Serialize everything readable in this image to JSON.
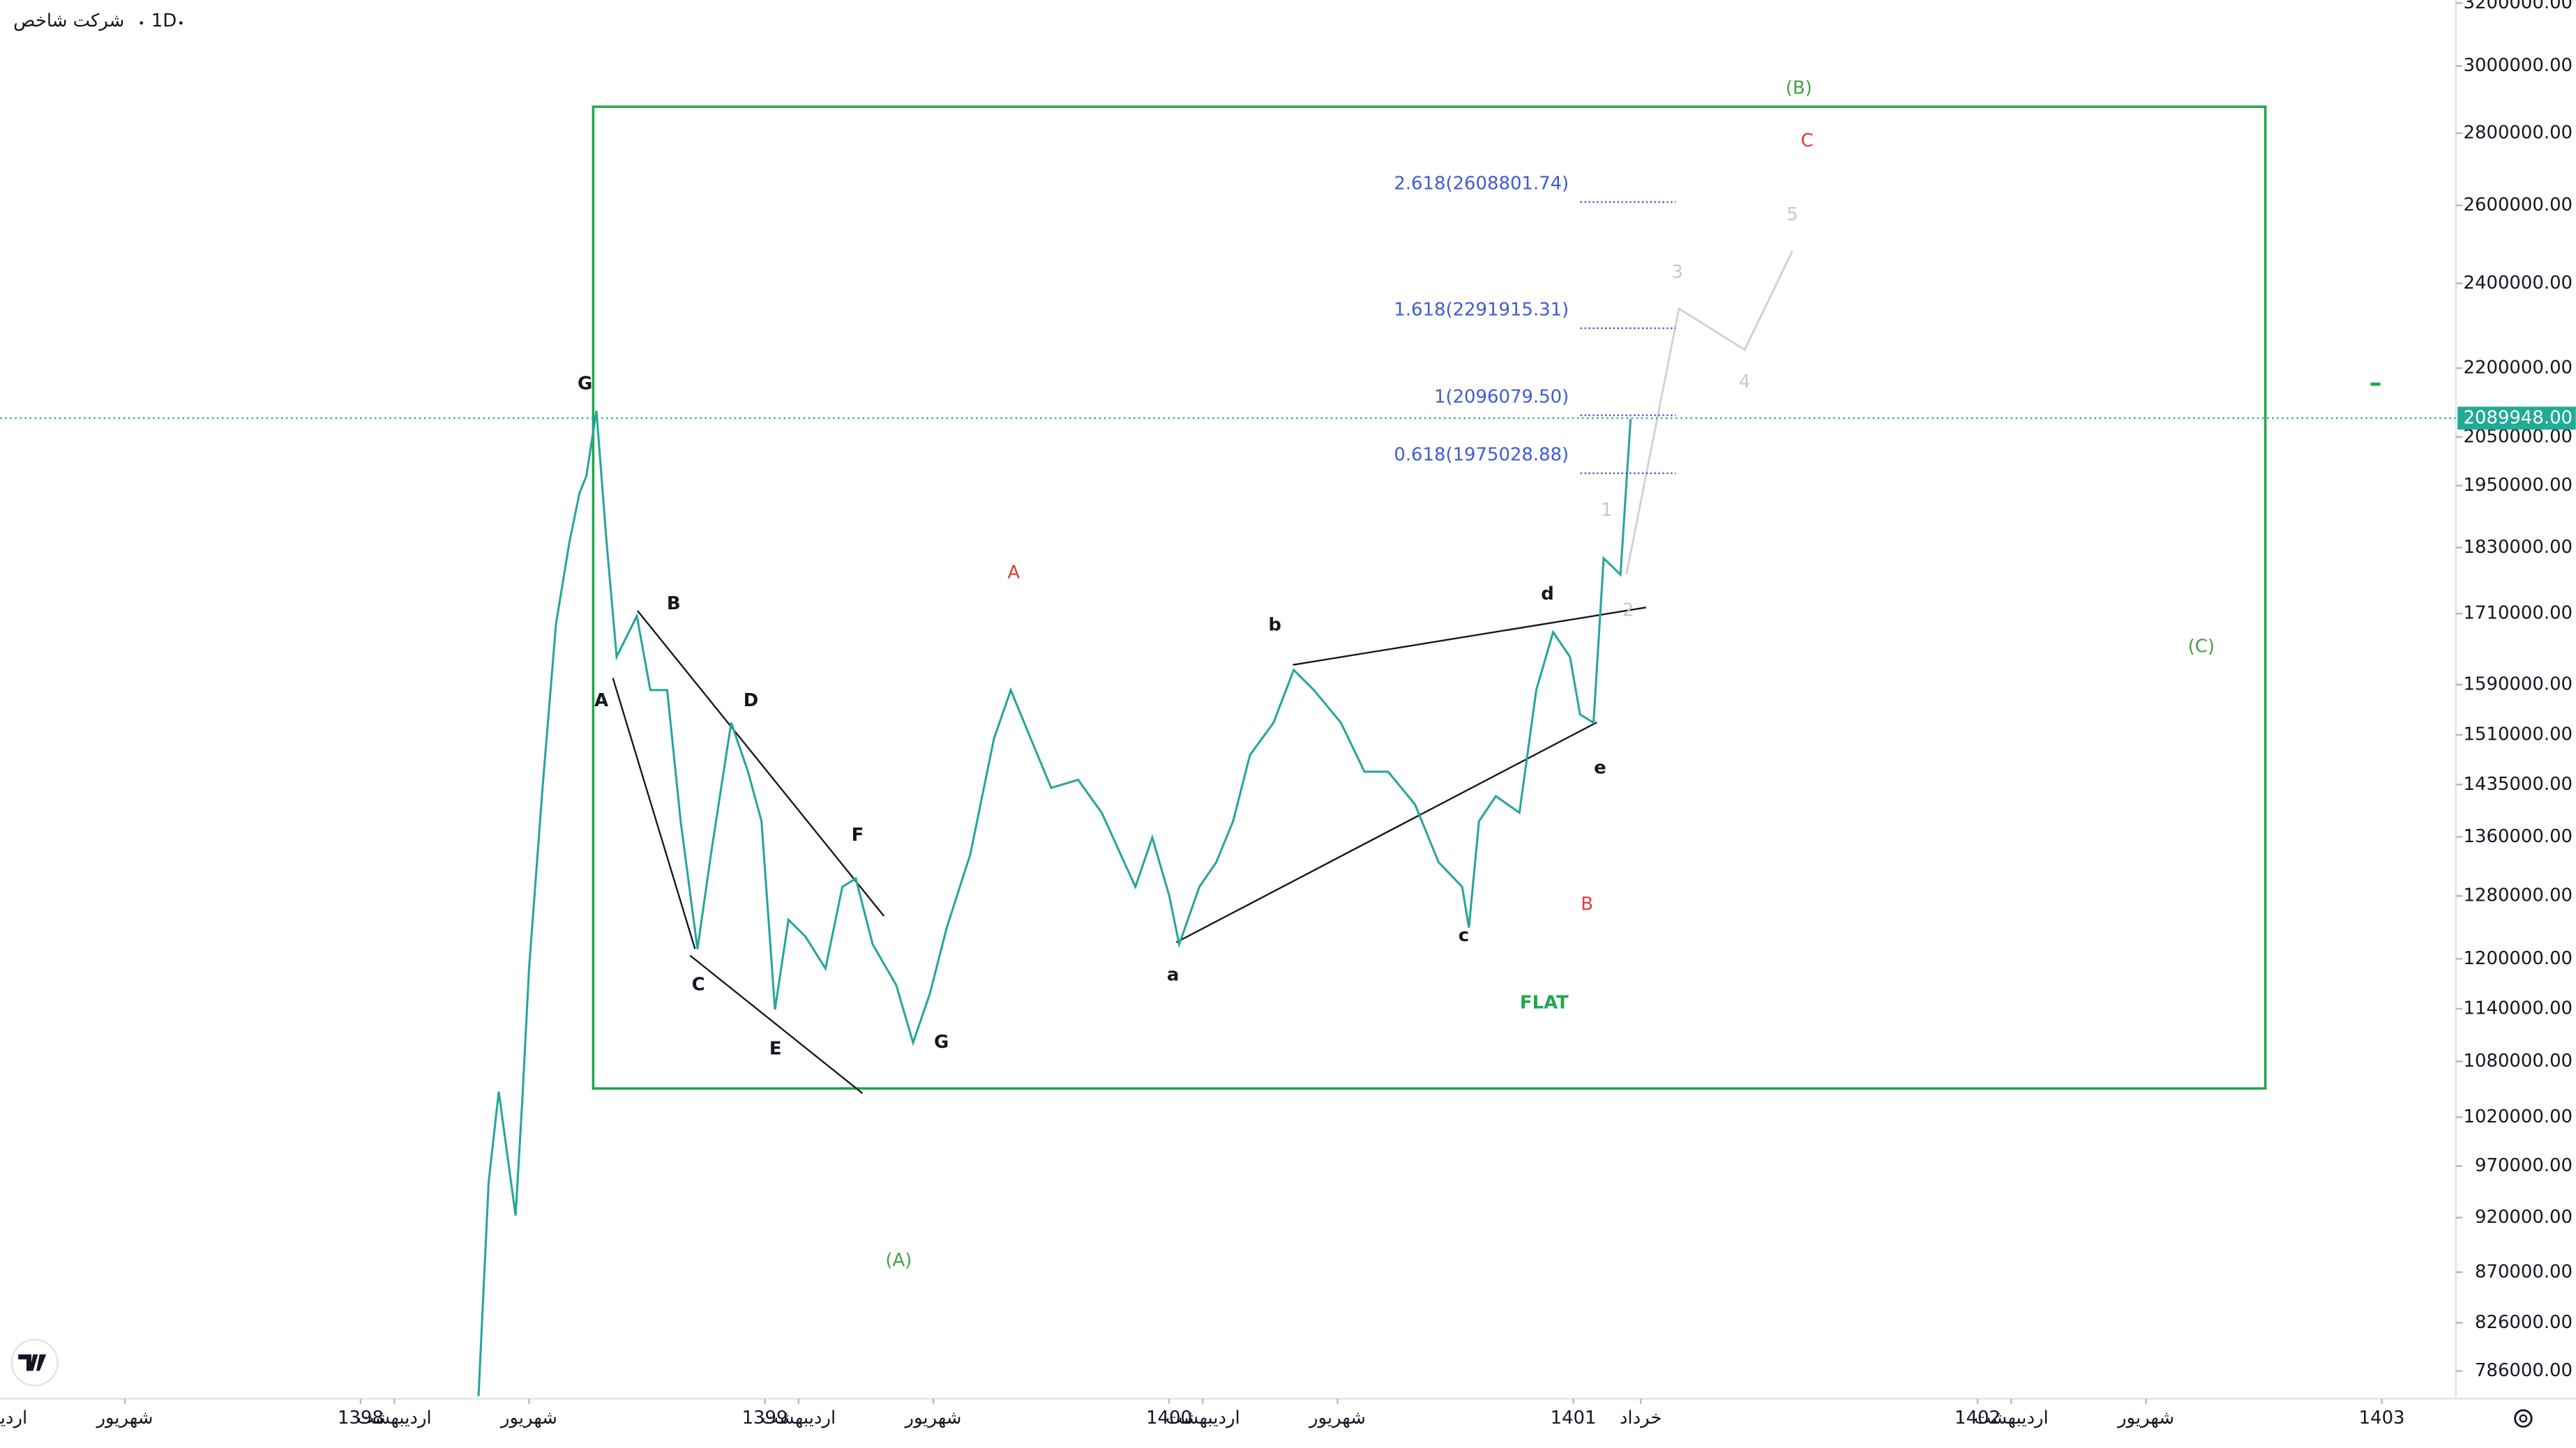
{
  "header": {
    "symbol": "شرکت شاخص",
    "interval": "1D"
  },
  "chart_data": {
    "type": "line",
    "log_scale": true,
    "color": "#26a69a",
    "x": [
      15.5,
      15.8,
      16.1,
      16.6,
      16.8,
      17.0,
      17.4,
      17.8,
      18.2,
      18.5,
      18.7,
      19.0,
      19.3,
      19.6,
      20.2,
      20.6,
      21.1,
      21.5,
      22.0,
      22.4,
      23.0,
      23.5,
      23.9,
      24.3,
      24.7,
      25.2,
      25.8,
      26.3,
      26.7,
      27.2,
      27.9,
      28.4,
      28.9,
      29.4,
      30.1,
      30.8,
      31.3,
      31.8,
      32.5,
      33.3,
      34.0,
      35.0,
      35.5,
      36.0,
      36.3,
      36.9,
      37.4,
      37.9,
      38.4,
      39.1,
      39.7,
      40.3,
      41.1,
      41.8,
      42.5,
      43.3,
      44.0,
      44.7,
      44.9,
      45.2,
      45.7,
      46.4,
      46.9,
      47.4,
      47.9,
      48.2,
      48.6,
      48.9,
      49.4,
      49.7
    ],
    "values": [
      766000,
      954000,
      1047000,
      922000,
      1038000,
      1188000,
      1430000,
      1692000,
      1841000,
      1936000,
      1969000,
      2106000,
      1841000,
      1636000,
      1706000,
      1581000,
      1581000,
      1382000,
      1212000,
      1336000,
      1529000,
      1454000,
      1382000,
      1139000,
      1249000,
      1228000,
      1188000,
      1292000,
      1303000,
      1218000,
      1168000,
      1101000,
      1158000,
      1239000,
      1336000,
      1504000,
      1581000,
      1516000,
      1430000,
      1442000,
      1394000,
      1292000,
      1359000,
      1281000,
      1218000,
      1292000,
      1325000,
      1382000,
      1479000,
      1529000,
      1614000,
      1581000,
      1529000,
      1454000,
      1454000,
      1406000,
      1325000,
      1292000,
      1239000,
      1382000,
      1418000,
      1394000,
      1581000,
      1678000,
      1636000,
      1542000,
      1529000,
      1810000,
      1780000,
      2088000
    ],
    "xlim": [
      1.3,
      74.2
    ],
    "xticks": [
      {
        "value": 1,
        "label": "اردیبهشت"
      },
      {
        "value": 5,
        "label": "شهریور"
      },
      {
        "value": 12,
        "label": "1398"
      },
      {
        "value": 13,
        "label": "اردیبهشت"
      },
      {
        "value": 17,
        "label": "شهریور"
      },
      {
        "value": 24,
        "label": "1399"
      },
      {
        "value": 25,
        "label": "اردیبهشت"
      },
      {
        "value": 29,
        "label": "شهریور"
      },
      {
        "value": 36,
        "label": "1400"
      },
      {
        "value": 37,
        "label": "اردیبهشت"
      },
      {
        "value": 41,
        "label": "شهریور"
      },
      {
        "value": 48,
        "label": "1401"
      },
      {
        "value": 50,
        "label": "خرداد"
      },
      {
        "value": 60,
        "label": "1402"
      },
      {
        "value": 61,
        "label": "اردیبهشت"
      },
      {
        "value": 65,
        "label": "شهریور"
      },
      {
        "value": 72,
        "label": "1403"
      }
    ],
    "ylim": [
      764000,
      3210000
    ],
    "yticks": [
      {
        "value": 786000,
        "label": "786000.00"
      },
      {
        "value": 826000,
        "label": "826000.00"
      },
      {
        "value": 870000,
        "label": "870000.00"
      },
      {
        "value": 920000,
        "label": "920000.00"
      },
      {
        "value": 970000,
        "label": "970000.00"
      },
      {
        "value": 1020000,
        "label": "1020000.00"
      },
      {
        "value": 1080000,
        "label": "1080000.00"
      },
      {
        "value": 1140000,
        "label": "1140000.00"
      },
      {
        "value": 1200000,
        "label": "1200000.00"
      },
      {
        "value": 1280000,
        "label": "1280000.00"
      },
      {
        "value": 1360000,
        "label": "1360000.00"
      },
      {
        "value": 1435000,
        "label": "1435000.00"
      },
      {
        "value": 1510000,
        "label": "1510000.00"
      },
      {
        "value": 1590000,
        "label": "1590000.00"
      },
      {
        "value": 1710000,
        "label": "1710000.00"
      },
      {
        "value": 1830000,
        "label": "1830000.00"
      },
      {
        "value": 1950000,
        "label": "1950000.00"
      },
      {
        "value": 2050000,
        "label": "2050000.00"
      },
      {
        "value": 2200000,
        "label": "2200000.00"
      },
      {
        "value": 2400000,
        "label": "2400000.00"
      },
      {
        "value": 2600000,
        "label": "2600000.00"
      },
      {
        "value": 2800000,
        "label": "2800000.00"
      },
      {
        "value": 3000000,
        "label": "3000000.00"
      },
      {
        "value": 3200000,
        "label": "3200000.00"
      }
    ],
    "last_price": {
      "value": 2089948,
      "label": "2089948.00",
      "color": "#22ab94"
    },
    "fib_levels": [
      {
        "value": 2608801.74,
        "label": "2.618(2608801.74)"
      },
      {
        "value": 2291915.31,
        "label": "1.618(2291915.31)"
      },
      {
        "value": 2096079.5,
        "label": "1(2096079.50)"
      },
      {
        "value": 1975028.88,
        "label": "0.618(1975028.88)"
      }
    ],
    "fib_color": "#3f5bd6",
    "annotations": [
      {
        "text": "G",
        "color": "#131722"
      },
      {
        "text": "A",
        "color": "#131722"
      },
      {
        "text": "B",
        "color": "#131722"
      },
      {
        "text": "C",
        "color": "#131722"
      },
      {
        "text": "D",
        "color": "#131722"
      },
      {
        "text": "E",
        "color": "#131722"
      },
      {
        "text": "F",
        "color": "#131722"
      },
      {
        "text": "G",
        "color": "#131722"
      },
      {
        "text": "a",
        "color": "#131722"
      },
      {
        "text": "b",
        "color": "#131722"
      },
      {
        "text": "c",
        "color": "#131722"
      },
      {
        "text": "d",
        "color": "#131722"
      },
      {
        "text": "e",
        "color": "#131722"
      },
      {
        "text": "A",
        "color": "#e53935"
      },
      {
        "text": "B",
        "color": "#e53935"
      },
      {
        "text": "C",
        "color": "#e53935"
      },
      {
        "text": "(A)",
        "color": "#43a047"
      },
      {
        "text": "(B)",
        "color": "#43a047"
      },
      {
        "text": "(C)",
        "color": "#43a047"
      },
      {
        "text": "1",
        "color": "#c8c8c8"
      },
      {
        "text": "2",
        "color": "#c8c8c8"
      },
      {
        "text": "3",
        "color": "#c8c8c8"
      },
      {
        "text": "4",
        "color": "#c8c8c8"
      },
      {
        "text": "5",
        "color": "#c8c8c8"
      },
      {
        "text": "FLAT",
        "color": "#1fa84a"
      }
    ]
  }
}
